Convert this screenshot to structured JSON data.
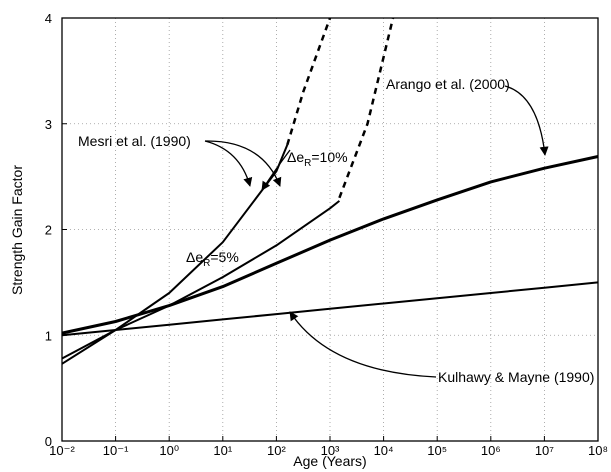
{
  "chart_data": {
    "type": "line",
    "xlabel": "Age (Years)",
    "ylabel": "Strength Gain Factor",
    "xscale": "log",
    "grid": true,
    "xlim": [
      0.01,
      100000000
    ],
    "ylim": [
      0,
      4
    ],
    "xticks": [
      {
        "value": 0.01,
        "label": "10⁻²"
      },
      {
        "value": 0.1,
        "label": "10⁻¹"
      },
      {
        "value": 1,
        "label": "10⁰"
      },
      {
        "value": 10,
        "label": "10¹"
      },
      {
        "value": 100,
        "label": "10²"
      },
      {
        "value": 1000,
        "label": "10³"
      },
      {
        "value": 10000,
        "label": "10⁴"
      },
      {
        "value": 100000,
        "label": "10⁵"
      },
      {
        "value": 1000000,
        "label": "10⁶"
      },
      {
        "value": 10000000,
        "label": "10⁷"
      },
      {
        "value": 100000000,
        "label": "10⁸"
      }
    ],
    "yticks": [
      0,
      1,
      2,
      3,
      4
    ],
    "series": [
      {
        "color": "#000000",
        "width": 3,
        "style": "solid",
        "x": [
          0.01,
          0.1,
          1,
          10,
          100,
          1000,
          10000,
          100000,
          1000000,
          10000000,
          100000000
        ],
        "values": [
          1.02,
          1.13,
          1.28,
          1.46,
          1.68,
          1.9,
          2.1,
          2.28,
          2.45,
          2.58,
          2.69
        ]
      },
      {
        "color": "#000000",
        "width": 2,
        "style": "solid",
        "x": [
          0.01,
          0.1,
          1,
          10,
          100,
          1000,
          10000,
          100000,
          1000000,
          10000000,
          100000000
        ],
        "values": [
          1.0,
          1.05,
          1.1,
          1.15,
          1.2,
          1.25,
          1.3,
          1.35,
          1.4,
          1.45,
          1.5
        ]
      },
      {
        "color": "#000000",
        "width": 2,
        "style": "solid",
        "x": [
          0.01,
          0.1,
          1,
          10,
          100,
          160
        ],
        "values": [
          0.73,
          1.05,
          1.4,
          1.88,
          2.55,
          2.8
        ]
      },
      {
        "color": "#000000",
        "width": 2.5,
        "style": "dashed",
        "x": [
          160,
          316,
          1000
        ],
        "values": [
          2.8,
          3.3,
          4.0
        ]
      },
      {
        "color": "#000000",
        "width": 2,
        "style": "solid",
        "x": [
          0.01,
          0.1,
          1,
          10,
          100,
          1000,
          1500
        ],
        "values": [
          0.78,
          1.05,
          1.28,
          1.55,
          1.85,
          2.2,
          2.27
        ]
      },
      {
        "color": "#000000",
        "width": 2.5,
        "style": "dashed",
        "x": [
          1500,
          5000,
          15000
        ],
        "values": [
          2.3,
          3.0,
          4.0
        ]
      }
    ],
    "annotations": {
      "mesri": "Mesri et al. (1990)",
      "arango": "Arango et al. (2000)",
      "kulhawy": "Kulhawy & Mayne (1990)",
      "de10": {
        "pre": "Δe",
        "sub": "R",
        "post": "=10%"
      },
      "de5": {
        "pre": "Δe",
        "sub": "R",
        "post": "=5%"
      }
    }
  }
}
